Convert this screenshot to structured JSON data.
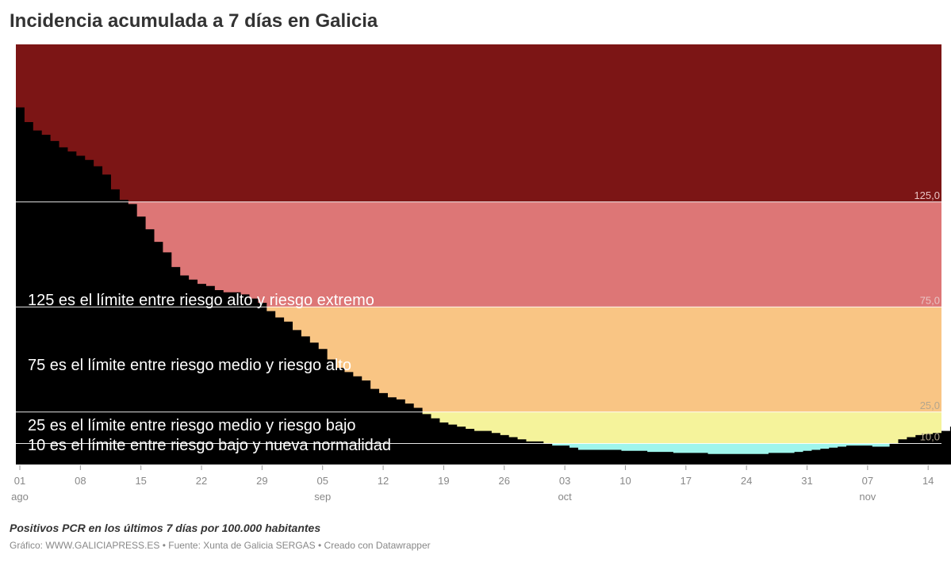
{
  "title": "Incidencia acumulada a 7 días en Galicia",
  "subtitle": "Positivos PCR en los últimos 7 días por 100.000 habitantes",
  "footer": "Gráfico: WWW.GALICIAPRESS.ES • Fuente: Xunta de Galicia SERGAS • Creado con Datawrapper",
  "chart_data": {
    "type": "area",
    "step": true,
    "x_start": "2021-08-01",
    "x_end": "2021-11-16",
    "ylim": [
      0,
      200
    ],
    "grid": false,
    "legend": "none",
    "x_ticks": [
      {
        "date": "2021-08-01",
        "day": "01",
        "month": "ago"
      },
      {
        "date": "2021-08-08",
        "day": "08",
        "month": ""
      },
      {
        "date": "2021-08-15",
        "day": "15",
        "month": ""
      },
      {
        "date": "2021-08-22",
        "day": "22",
        "month": ""
      },
      {
        "date": "2021-08-29",
        "day": "29",
        "month": ""
      },
      {
        "date": "2021-09-05",
        "day": "05",
        "month": "sep"
      },
      {
        "date": "2021-09-12",
        "day": "12",
        "month": ""
      },
      {
        "date": "2021-09-19",
        "day": "19",
        "month": ""
      },
      {
        "date": "2021-09-26",
        "day": "26",
        "month": ""
      },
      {
        "date": "2021-10-03",
        "day": "03",
        "month": "oct"
      },
      {
        "date": "2021-10-10",
        "day": "10",
        "month": ""
      },
      {
        "date": "2021-10-17",
        "day": "17",
        "month": ""
      },
      {
        "date": "2021-10-24",
        "day": "24",
        "month": ""
      },
      {
        "date": "2021-10-31",
        "day": "31",
        "month": ""
      },
      {
        "date": "2021-11-07",
        "day": "07",
        "month": "nov"
      },
      {
        "date": "2021-11-14",
        "day": "14",
        "month": ""
      }
    ],
    "bands": [
      {
        "from": 125,
        "to": 200,
        "color": "#7c1515"
      },
      {
        "from": 75,
        "to": 125,
        "color": "#dd7676"
      },
      {
        "from": 25,
        "to": 75,
        "color": "#f9c584"
      },
      {
        "from": 10,
        "to": 25,
        "color": "#f5f39b"
      },
      {
        "from": 0,
        "to": 10,
        "color": "#9ff5ec"
      }
    ],
    "thresholds": [
      {
        "value": 125,
        "label": "125,0"
      },
      {
        "value": 75,
        "label": "75,0"
      },
      {
        "value": 25,
        "label": "25,0"
      },
      {
        "value": 10,
        "label": "10,0"
      }
    ],
    "annotations": [
      {
        "value": 125,
        "text": "125 es el límite entre riesgo alto y riesgo extremo"
      },
      {
        "value": 75,
        "text": "75 es el límite entre riesgo medio y riesgo alto"
      },
      {
        "value": 25,
        "text": "25 es el límite entre riesgo medio y riesgo bajo"
      },
      {
        "value": 10,
        "text": "10 es el límite entre riesgo bajo y nueva normalidad"
      }
    ],
    "series": [
      {
        "values": [
          170,
          163,
          159,
          157,
          154,
          151,
          149,
          147,
          145,
          142,
          138,
          131,
          126,
          124,
          118,
          112,
          106,
          101,
          94,
          90,
          88,
          86,
          85,
          83,
          82,
          82,
          81,
          79,
          77,
          73,
          70,
          68,
          64,
          61,
          58,
          55,
          50,
          46,
          44,
          42,
          40,
          36,
          34,
          32,
          31,
          29,
          27,
          24,
          22,
          20,
          19,
          18,
          17,
          16,
          16,
          15,
          14,
          13,
          12,
          11,
          11,
          10,
          9,
          9,
          8,
          7,
          7,
          7,
          7,
          7,
          6.5,
          6.5,
          6.5,
          6,
          6,
          6,
          5.5,
          5.5,
          5.5,
          5.5,
          5,
          5,
          5,
          5,
          5,
          5,
          5,
          5.5,
          5.5,
          5.5,
          6,
          6.5,
          7,
          7.5,
          8,
          8.5,
          9,
          9,
          9,
          8.5,
          8.5,
          10,
          12,
          13,
          14,
          14.5,
          15,
          16,
          18,
          20,
          22,
          24,
          26,
          28
        ]
      }
    ]
  }
}
